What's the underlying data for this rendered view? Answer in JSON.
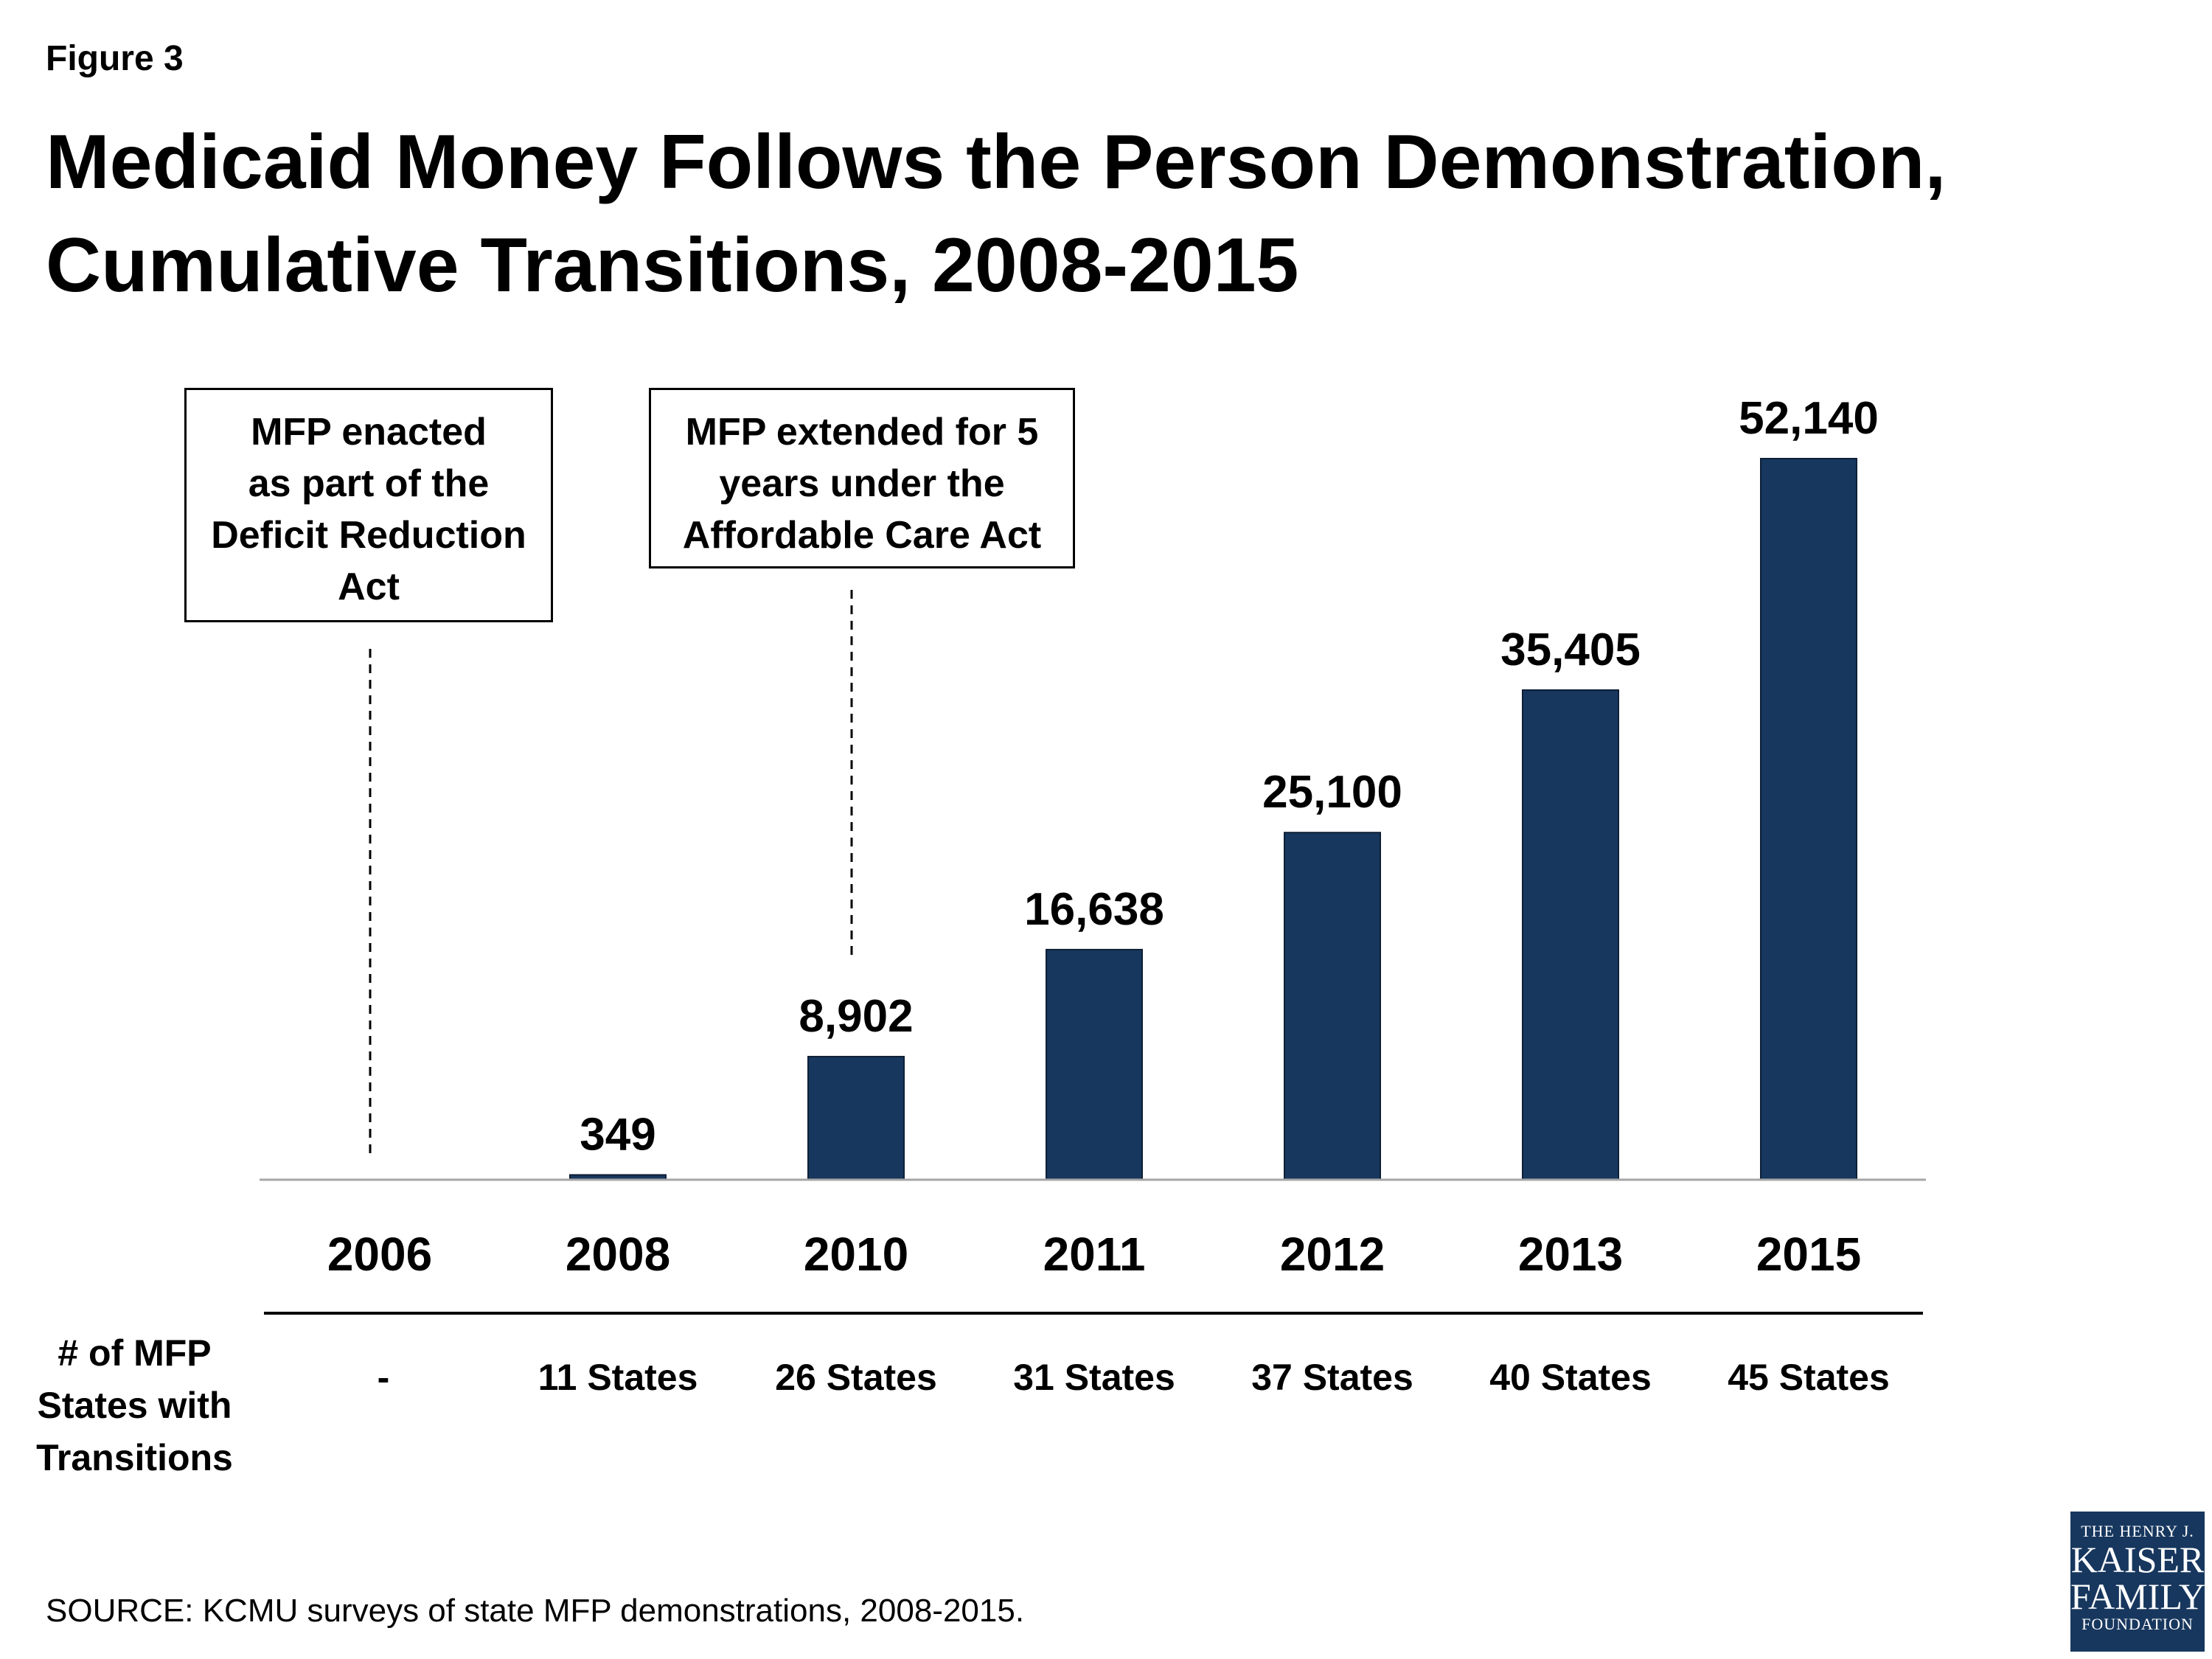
{
  "figure_label": "Figure 3",
  "title": "Medicaid Money Follows the Person Demonstration, Cumulative Transitions, 2008-2015",
  "chart_data": {
    "type": "bar",
    "title": "Medicaid Money Follows the Person Demonstration, Cumulative Transitions, 2008-2015",
    "categories": [
      "2006",
      "2008",
      "2010",
      "2011",
      "2012",
      "2013",
      "2015"
    ],
    "values": [
      null,
      349,
      8902,
      16638,
      25100,
      35405,
      52140
    ],
    "value_labels": [
      "",
      "349",
      "8,902",
      "16,638",
      "25,100",
      "35,405",
      "52,140"
    ],
    "xlabel": "",
    "ylabel": "",
    "ylim": [
      0,
      52140
    ],
    "grid": false,
    "legend": "none",
    "bar_color": "#17375e",
    "annotations": [
      {
        "category": "2006",
        "lines": [
          "MFP enacted",
          "as part of the",
          "Deficit Reduction",
          "Act"
        ]
      },
      {
        "category": "2010",
        "lines": [
          "MFP extended for 5",
          "years under the",
          "Affordable Care Act"
        ]
      }
    ]
  },
  "table_row": {
    "label_lines": [
      "# of MFP",
      "States with",
      "Transitions"
    ],
    "values": [
      "-",
      "11 States",
      "26 States",
      "31 States",
      "37 States",
      "40 States",
      "45 States"
    ]
  },
  "source": "SOURCE: KCMU surveys of state MFP demonstrations, 2008-2015.",
  "logo": {
    "line1": "THE HENRY J.",
    "line2": "KAISER",
    "line3": "FAMILY",
    "line4": "FOUNDATION",
    "color": "#17375e"
  }
}
